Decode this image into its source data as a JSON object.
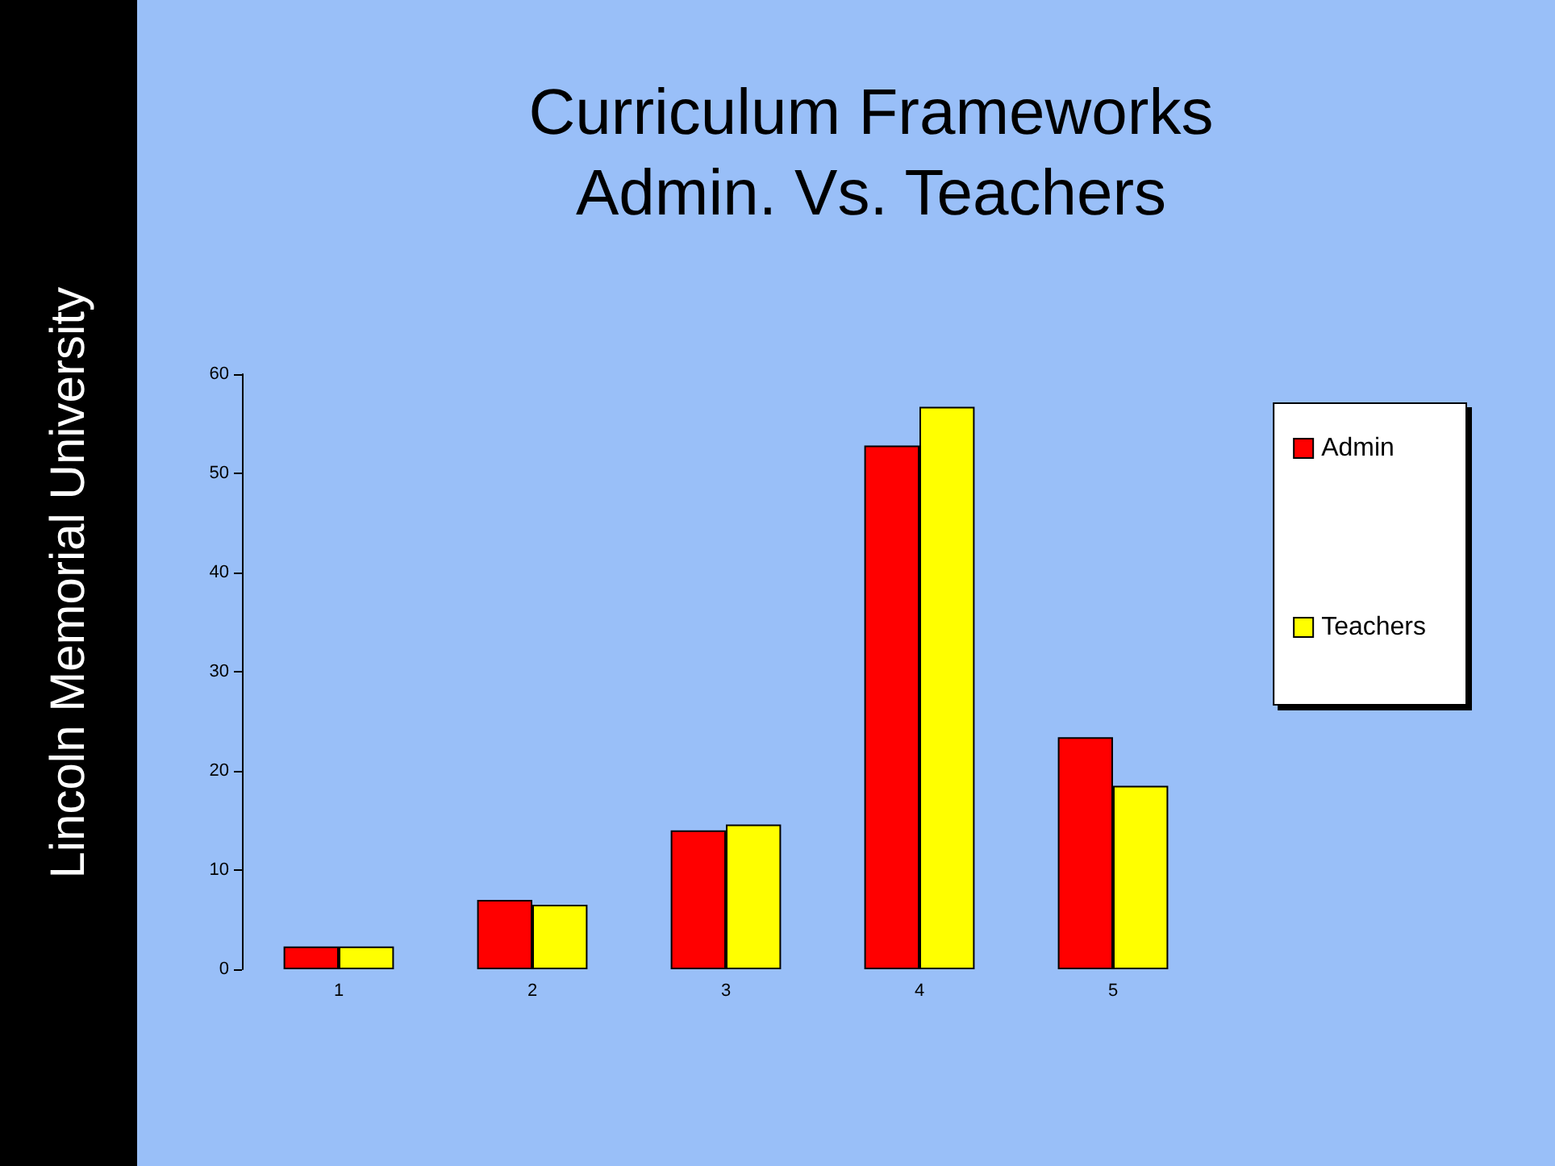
{
  "chart_data": {
    "type": "bar",
    "title": "Curriculum Frameworks\nAdmin. Vs. Teachers",
    "annotations": [
      "Lincoln Memorial University"
    ],
    "categories": [
      "1",
      "2",
      "3",
      "4",
      "5"
    ],
    "series": [
      {
        "name": "Admin",
        "color": "#ff0000",
        "values": [
          2.3,
          7,
          14,
          52.8,
          23.4
        ]
      },
      {
        "name": "Teachers",
        "color": "#ffff00",
        "values": [
          2.3,
          6.5,
          14.6,
          56.7,
          18.5
        ]
      }
    ],
    "ylim": [
      0,
      60
    ],
    "yticks": [
      0,
      10,
      20,
      30,
      40,
      50,
      60
    ],
    "grid": false,
    "legend": "right"
  }
}
